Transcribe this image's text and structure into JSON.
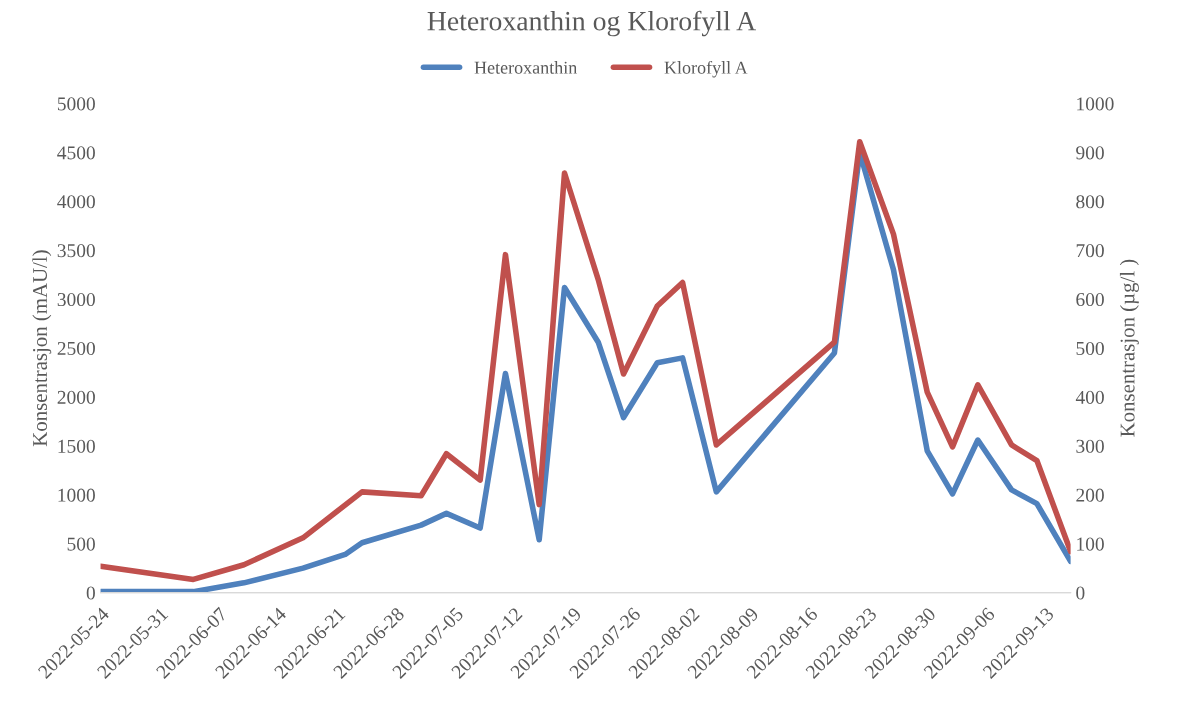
{
  "chart_data": {
    "type": "line",
    "title": "Heteroxanthin og Klorofyll A",
    "xlabel": null,
    "ylabel": "Konsentrasjon (mAU/l)",
    "y2label": "Konsentrasjon (µg/l )",
    "series": [
      {
        "name": "Heteroxanthin",
        "color": "#4f81bd",
        "x": [
          "2022-05-24",
          "2022-06-04",
          "2022-06-10",
          "2022-06-17",
          "2022-06-22",
          "2022-06-24",
          "2022-07-01",
          "2022-07-04",
          "2022-07-08",
          "2022-07-11",
          "2022-07-15",
          "2022-07-18",
          "2022-07-22",
          "2022-07-25",
          "2022-07-29",
          "2022-08-01",
          "2022-08-05",
          "2022-08-19",
          "2022-08-22",
          "2022-08-26",
          "2022-08-30",
          "2022-09-02",
          "2022-09-05",
          "2022-09-09",
          "2022-09-12",
          "2022-09-16"
        ],
        "values": [
          10,
          10,
          100,
          250,
          390,
          510,
          690,
          810,
          660,
          2240,
          540,
          3120,
          2560,
          1790,
          2350,
          2400,
          1030,
          2450,
          4500,
          3300,
          1450,
          1010,
          1560,
          1050,
          910,
          320
        ]
      },
      {
        "name": "Klorofyll A",
        "color": "#c0504d",
        "axis": "y2",
        "x": [
          "2022-05-24",
          "2022-06-04",
          "2022-06-10",
          "2022-06-17",
          "2022-06-24",
          "2022-07-01",
          "2022-07-04",
          "2022-07-08",
          "2022-07-11",
          "2022-07-15",
          "2022-07-18",
          "2022-07-22",
          "2022-07-25",
          "2022-07-29",
          "2022-08-01",
          "2022-08-05",
          "2022-08-19",
          "2022-08-22",
          "2022-08-26",
          "2022-08-30",
          "2022-09-02",
          "2022-09-05",
          "2022-09-09",
          "2022-09-12",
          "2022-09-16"
        ],
        "values": [
          54,
          27,
          57,
          112,
          206,
          198,
          284,
          230,
          691,
          180,
          858,
          640,
          447,
          586,
          634,
          302,
          512,
          922,
          733,
          410,
          298,
          425,
          302,
          270,
          84
        ]
      }
    ],
    "xlim": [
      "2022-05-24",
      "2022-09-16"
    ],
    "xticks": [
      "2022-05-24",
      "2022-05-31",
      "2022-06-07",
      "2022-06-14",
      "2022-06-21",
      "2022-06-28",
      "2022-07-05",
      "2022-07-12",
      "2022-07-19",
      "2022-07-26",
      "2022-08-02",
      "2022-08-09",
      "2022-08-16",
      "2022-08-23",
      "2022-08-30",
      "2022-09-06",
      "2022-09-13"
    ],
    "ylim": [
      0,
      5000
    ],
    "yticks": [
      0,
      500,
      1000,
      1500,
      2000,
      2500,
      3000,
      3500,
      4000,
      4500,
      5000
    ],
    "y2lim": [
      0,
      1000
    ],
    "y2ticks": [
      0,
      100,
      200,
      300,
      400,
      500,
      600,
      700,
      800,
      900,
      1000
    ],
    "grid": false,
    "legend": "top",
    "marker": "none",
    "line_style": "solid"
  }
}
